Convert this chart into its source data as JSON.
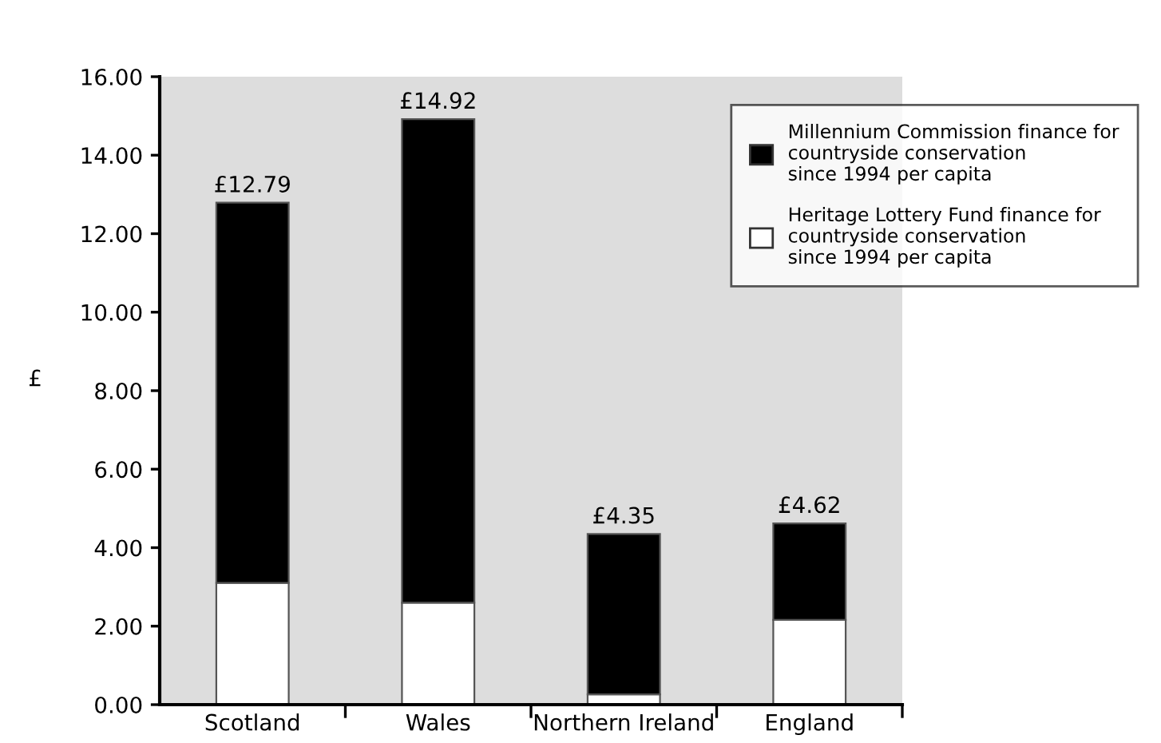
{
  "chart_data": {
    "type": "bar",
    "stacked": true,
    "categories": [
      "Scotland",
      "Wales",
      "Northern Ireland",
      "England"
    ],
    "series": [
      {
        "name": "Heritage Lottery Fund finance for countryside conservation since 1994 per capita",
        "color": "#ffffff",
        "values": [
          3.1,
          2.6,
          0.26,
          2.16
        ]
      },
      {
        "name": "Millennium Commission finance for countryside conservation since 1994 per capita",
        "color": "#000000",
        "values": [
          9.69,
          12.32,
          4.09,
          2.46
        ]
      }
    ],
    "totals": [
      "£12.79",
      "£14.92",
      "£4.35",
      "£4.62"
    ],
    "ylabel": "£",
    "ylim": [
      0,
      16
    ],
    "yticks": [
      {
        "value": 0,
        "label": "0.00"
      },
      {
        "value": 2,
        "label": "2.00"
      },
      {
        "value": 4,
        "label": "4.00"
      },
      {
        "value": 6,
        "label": "6.00"
      },
      {
        "value": 8,
        "label": "8.00"
      },
      {
        "value": 10,
        "label": "10.00"
      },
      {
        "value": 12,
        "label": "12.00"
      },
      {
        "value": 14,
        "label": "14.00"
      },
      {
        "value": 16,
        "label": "16.00"
      }
    ],
    "legend": "top right",
    "grid": false
  }
}
